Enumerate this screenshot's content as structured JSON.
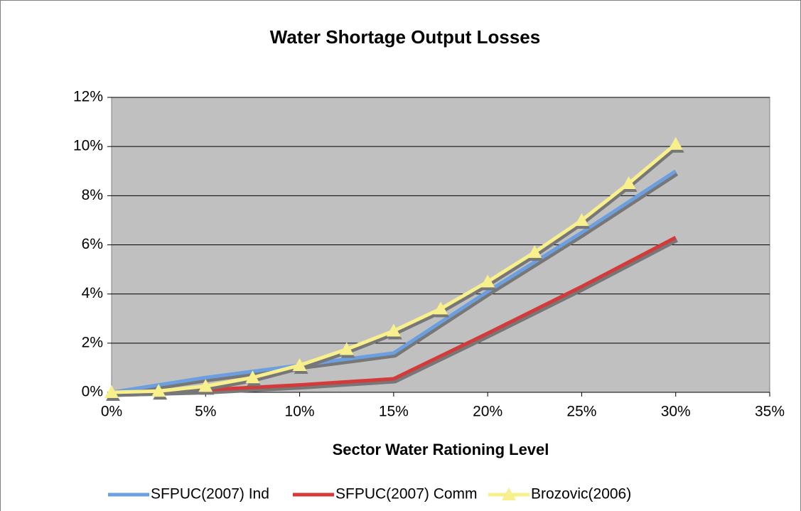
{
  "chart_data": {
    "type": "line",
    "title": "Water Shortage Output Losses",
    "x_label": "Sector Water Rationing Level",
    "xlim": [
      0,
      35
    ],
    "xticks": [
      {
        "value": 0,
        "label": "0%"
      },
      {
        "value": 5,
        "label": "5%"
      },
      {
        "value": 10,
        "label": "10%"
      },
      {
        "value": 15,
        "label": "15%"
      },
      {
        "value": 20,
        "label": "20%"
      },
      {
        "value": 25,
        "label": "25%"
      },
      {
        "value": 30,
        "label": "30%"
      },
      {
        "value": 35,
        "label": "35%"
      }
    ],
    "ylim": [
      0,
      12
    ],
    "yticks": [
      {
        "value": 0,
        "label": "0%"
      },
      {
        "value": 2,
        "label": "2%"
      },
      {
        "value": 4,
        "label": "4%"
      },
      {
        "value": 6,
        "label": "6%"
      },
      {
        "value": 8,
        "label": "8%"
      },
      {
        "value": 10,
        "label": "10%"
      },
      {
        "value": 12,
        "label": "12%"
      }
    ],
    "grid": true,
    "legend": "bottom",
    "series": [
      {
        "name": "SFPUC(2007) Ind",
        "color": "#6c9fe0",
        "marker": "none",
        "x": [
          0,
          5,
          10,
          15,
          20,
          25,
          30
        ],
        "values": [
          0,
          0.6,
          1.1,
          1.6,
          4.1,
          6.5,
          9.0
        ]
      },
      {
        "name": "SFPUC(2007) Comm",
        "color": "#d43a3a",
        "marker": "none",
        "x": [
          0,
          5,
          10,
          14,
          15,
          20,
          25,
          30
        ],
        "values": [
          0,
          0.1,
          0.3,
          0.5,
          0.55,
          2.4,
          4.3,
          6.3
        ]
      },
      {
        "name": "Brozovic(2006)",
        "color": "#f8f08c",
        "marker": "triangle",
        "x": [
          0,
          2.5,
          5,
          7.5,
          10,
          12.5,
          15,
          17.5,
          20,
          22.5,
          25,
          27.5,
          30
        ],
        "values": [
          0,
          0.05,
          0.25,
          0.6,
          1.1,
          1.75,
          2.5,
          3.4,
          4.5,
          5.7,
          7.0,
          8.5,
          10.1
        ]
      }
    ]
  }
}
